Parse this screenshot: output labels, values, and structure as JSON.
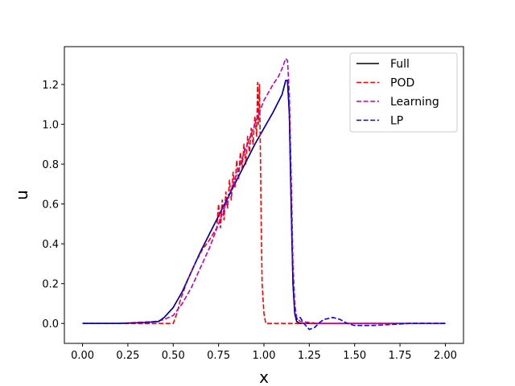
{
  "chart_data": {
    "type": "line",
    "title": "",
    "xlabel": "x",
    "ylabel": "u",
    "xlim": [
      -0.1,
      2.1
    ],
    "ylim": [
      -0.1,
      1.39
    ],
    "xticks": [
      0.0,
      0.25,
      0.5,
      0.75,
      1.0,
      1.25,
      1.5,
      1.75,
      2.0
    ],
    "xtick_labels": [
      "0.00",
      "0.25",
      "0.50",
      "0.75",
      "1.00",
      "1.25",
      "1.50",
      "1.75",
      "2.00"
    ],
    "yticks": [
      0.0,
      0.2,
      0.4,
      0.6,
      0.8,
      1.0,
      1.2
    ],
    "ytick_labels": [
      "0.0",
      "0.2",
      "0.4",
      "0.6",
      "0.8",
      "1.0",
      "1.2"
    ],
    "grid": false,
    "legend_position": "top-right",
    "series": [
      {
        "name": "Full",
        "color": "#000000",
        "style": "solid",
        "x": [
          0.0,
          0.2,
          0.35,
          0.42,
          0.45,
          0.5,
          0.55,
          0.6,
          0.65,
          0.7,
          0.75,
          0.8,
          0.85,
          0.9,
          0.95,
          1.0,
          1.05,
          1.1,
          1.12,
          1.13,
          1.14,
          1.15,
          1.16,
          1.17,
          1.18,
          1.2,
          1.3,
          1.5,
          2.0
        ],
        "y": [
          0.0,
          0.0,
          0.005,
          0.01,
          0.03,
          0.08,
          0.16,
          0.26,
          0.36,
          0.45,
          0.54,
          0.63,
          0.72,
          0.81,
          0.9,
          0.98,
          1.06,
          1.15,
          1.22,
          1.22,
          1.05,
          0.6,
          0.2,
          0.05,
          0.01,
          0.0,
          0.0,
          0.0,
          0.0
        ]
      },
      {
        "name": "POD",
        "color": "#ff0000",
        "style": "dashed",
        "x": [
          0.0,
          0.3,
          0.45,
          0.5,
          0.52,
          0.54,
          0.58,
          0.62,
          0.66,
          0.7,
          0.74,
          0.75,
          0.76,
          0.77,
          0.78,
          0.79,
          0.8,
          0.81,
          0.82,
          0.83,
          0.84,
          0.85,
          0.86,
          0.87,
          0.88,
          0.89,
          0.9,
          0.91,
          0.92,
          0.93,
          0.94,
          0.95,
          0.96,
          0.965,
          0.97,
          0.975,
          0.98,
          0.985,
          0.99,
          1.0,
          1.01,
          1.05,
          1.2,
          1.5,
          2.0
        ],
        "y": [
          0.0,
          0.0,
          0.0,
          0.0,
          0.05,
          0.12,
          0.22,
          0.3,
          0.37,
          0.42,
          0.48,
          0.6,
          0.48,
          0.62,
          0.52,
          0.66,
          0.58,
          0.72,
          0.62,
          0.76,
          0.68,
          0.82,
          0.72,
          0.86,
          0.78,
          0.9,
          0.8,
          0.94,
          0.86,
          0.98,
          0.9,
          1.04,
          0.94,
          1.21,
          1.0,
          1.2,
          0.9,
          0.5,
          0.2,
          0.05,
          0.0,
          0.0,
          0.0,
          0.0,
          0.0
        ]
      },
      {
        "name": "Learning",
        "color": "#c000c0",
        "style": "dashed",
        "x": [
          0.0,
          0.2,
          0.4,
          0.45,
          0.5,
          0.55,
          0.6,
          0.65,
          0.7,
          0.75,
          0.8,
          0.85,
          0.9,
          0.95,
          1.0,
          1.05,
          1.08,
          1.1,
          1.12,
          1.13,
          1.14,
          1.15,
          1.16,
          1.17,
          1.18,
          1.2,
          1.3,
          1.5,
          2.0
        ],
        "y": [
          0.0,
          0.0,
          0.01,
          0.02,
          0.04,
          0.1,
          0.18,
          0.28,
          0.38,
          0.5,
          0.62,
          0.75,
          0.88,
          1.0,
          1.12,
          1.2,
          1.24,
          1.28,
          1.33,
          1.32,
          1.15,
          0.75,
          0.3,
          0.1,
          0.03,
          0.01,
          0.0,
          0.0,
          0.0
        ]
      },
      {
        "name": "LP",
        "color": "#0000ff",
        "style": "dashed",
        "x": [
          0.0,
          0.2,
          0.35,
          0.42,
          0.45,
          0.5,
          0.55,
          0.6,
          0.65,
          0.7,
          0.75,
          0.8,
          0.85,
          0.9,
          0.95,
          1.0,
          1.05,
          1.1,
          1.12,
          1.13,
          1.14,
          1.15,
          1.16,
          1.17,
          1.18,
          1.2,
          1.22,
          1.25,
          1.28,
          1.3,
          1.33,
          1.38,
          1.42,
          1.46,
          1.5,
          1.6,
          1.8,
          2.0
        ],
        "y": [
          0.0,
          0.0,
          0.005,
          0.01,
          0.03,
          0.08,
          0.16,
          0.26,
          0.36,
          0.45,
          0.54,
          0.63,
          0.72,
          0.81,
          0.9,
          0.98,
          1.06,
          1.15,
          1.22,
          1.22,
          1.05,
          0.6,
          0.2,
          0.05,
          0.02,
          0.03,
          0.0,
          -0.03,
          -0.02,
          0.0,
          0.02,
          0.03,
          0.02,
          0.0,
          -0.01,
          -0.01,
          0.0,
          0.0
        ]
      }
    ]
  }
}
